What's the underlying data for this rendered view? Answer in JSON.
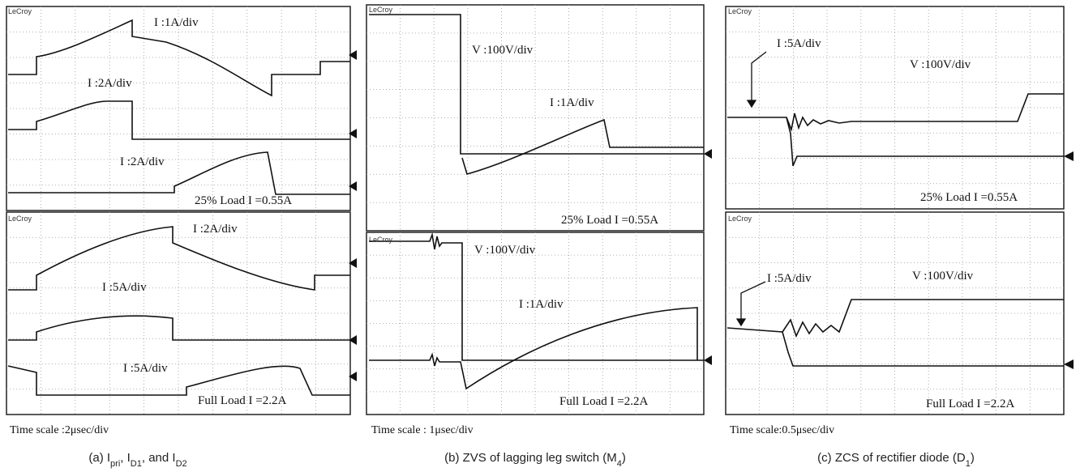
{
  "panels": [
    {
      "scopes": [
        {
          "brand": "LeCroy",
          "labels": [
            "I  :1A/div",
            "I  :2A/div",
            "I  :2A/div"
          ],
          "load": "25% Load I =0.55A"
        },
        {
          "brand": "LeCroy",
          "labels": [
            "I  :2A/div",
            "I  :5A/div",
            "I  :5A/div"
          ],
          "load": "Full Load I =2.2A"
        }
      ],
      "time_scale": "Time scale :2μsec/div",
      "caption": [
        {
          "text": "(a)  I"
        },
        {
          "text": "pri",
          "sub": true
        },
        {
          "text": ", I"
        },
        {
          "text": "D1",
          "sub": true
        },
        {
          "text": ", and I"
        },
        {
          "text": "D2",
          "sub": true
        }
      ]
    },
    {
      "scopes": [
        {
          "brand": "LeCroy",
          "labels": [
            "V  :100V/div",
            "I  :1A/div"
          ],
          "load": "25% Load I =0.55A"
        },
        {
          "brand": "LeCroy",
          "labels": [
            "V  :100V/div",
            "I  :1A/div"
          ],
          "load": "Full Load I =2.2A"
        }
      ],
      "time_scale": "Time scale : 1μsec/div",
      "caption": [
        {
          "text": "(b) ZVS of lagging leg switch (M"
        },
        {
          "text": "4",
          "sub": true
        },
        {
          "text": ")"
        }
      ]
    },
    {
      "scopes": [
        {
          "brand": "LeCroy",
          "labels": [
            "I  :5A/div",
            "V  :100V/div"
          ],
          "load": "25% Load I =0.55A"
        },
        {
          "brand": "LeCroy",
          "labels": [
            "I  :5A/div",
            "V  :100V/div"
          ],
          "load": "Full Load I =2.2A"
        }
      ],
      "time_scale": "Time scale:0.5μsec/div",
      "caption": [
        {
          "text": "(c) ZCS of rectifier diode (D"
        },
        {
          "text": "1",
          "sub": true
        },
        {
          "text": ")"
        }
      ]
    }
  ]
}
